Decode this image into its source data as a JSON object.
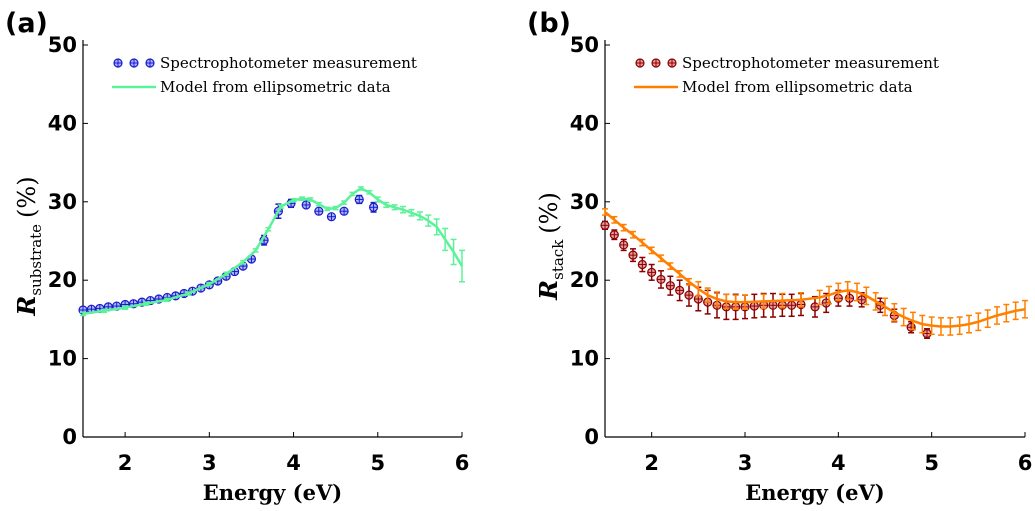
{
  "chart_data": [
    {
      "type": "errorbar",
      "panel_label": "(a)",
      "xlabel": "Energy (eV)",
      "ylabel": {
        "symbol": "R",
        "subscript": "substrate",
        "unit": "(%)"
      },
      "xlim": [
        1.5,
        6
      ],
      "xticks": [
        2,
        3,
        4,
        5,
        6
      ],
      "ylim": [
        0,
        50
      ],
      "yticks": [
        0,
        10,
        20,
        30,
        40,
        50
      ],
      "legend": "upper left",
      "series": [
        {
          "name": "Spectrophotometer measurement",
          "type": "markers",
          "color": "#1a1ac8",
          "marker_fill": "#a8b8ff",
          "x": [
            1.5,
            1.6,
            1.7,
            1.8,
            1.9,
            2.0,
            2.1,
            2.2,
            2.3,
            2.4,
            2.5,
            2.6,
            2.7,
            2.8,
            2.9,
            3.0,
            3.1,
            3.2,
            3.3,
            3.4,
            3.5,
            3.65,
            3.82,
            3.97,
            4.15,
            4.3,
            4.45,
            4.6,
            4.78,
            4.95
          ],
          "values": [
            16.2,
            16.3,
            16.4,
            16.6,
            16.7,
            16.9,
            17.0,
            17.2,
            17.4,
            17.6,
            17.8,
            18.0,
            18.3,
            18.6,
            19.0,
            19.4,
            19.9,
            20.5,
            21.1,
            21.8,
            22.7,
            25.1,
            28.8,
            29.8,
            29.6,
            28.8,
            28.1,
            28.8,
            30.3,
            29.3
          ],
          "errors": [
            0.3,
            0.3,
            0.3,
            0.3,
            0.3,
            0.3,
            0.3,
            0.3,
            0.3,
            0.3,
            0.3,
            0.3,
            0.3,
            0.3,
            0.3,
            0.3,
            0.3,
            0.3,
            0.3,
            0.3,
            0.3,
            0.6,
            0.9,
            0.5,
            0.3,
            0.3,
            0.3,
            0.3,
            0.5,
            0.6
          ]
        },
        {
          "name": "Model from ellipsometric data",
          "type": "line",
          "color": "#5cf29a",
          "x": [
            1.5,
            1.75,
            2,
            2.25,
            2.5,
            2.75,
            3,
            3.2,
            3.4,
            3.55,
            3.7,
            3.85,
            4.0,
            4.1,
            4.2,
            4.3,
            4.4,
            4.5,
            4.6,
            4.7,
            4.8,
            4.9,
            5.0,
            5.1,
            5.2,
            5.3,
            5.4,
            5.5,
            5.6,
            5.7,
            5.8,
            5.9,
            6.0
          ],
          "values": [
            15.7,
            16.1,
            16.5,
            17.0,
            17.5,
            18.3,
            19.5,
            20.8,
            22.3,
            23.8,
            26.5,
            29.4,
            30.2,
            30.4,
            30.3,
            29.7,
            29.1,
            29.2,
            29.9,
            31.0,
            31.7,
            31.2,
            30.3,
            29.6,
            29.3,
            29.0,
            28.6,
            28.2,
            27.6,
            26.8,
            25.2,
            23.6,
            21.8
          ],
          "errors": [
            0.2,
            0.2,
            0.2,
            0.2,
            0.2,
            0.2,
            0.2,
            0.2,
            0.2,
            0.2,
            0.2,
            0.2,
            0.2,
            0.2,
            0.2,
            0.2,
            0.2,
            0.2,
            0.2,
            0.2,
            0.2,
            0.2,
            0.3,
            0.3,
            0.3,
            0.4,
            0.4,
            0.5,
            0.7,
            1.0,
            1.4,
            1.6,
            2.0
          ]
        }
      ]
    },
    {
      "type": "errorbar",
      "panel_label": "(b)",
      "xlabel": "Energy (eV)",
      "ylabel": {
        "symbol": "R",
        "subscript": "stack",
        "unit": "(%)"
      },
      "xlim": [
        1.5,
        6
      ],
      "xticks": [
        2,
        3,
        4,
        5,
        6
      ],
      "ylim": [
        0,
        50
      ],
      "yticks": [
        0,
        10,
        20,
        30,
        40,
        50
      ],
      "legend": "upper left",
      "series": [
        {
          "name": "Spectrophotometer measurement",
          "type": "markers",
          "color": "#8b0000",
          "marker_fill": "#e6a0a0",
          "x": [
            1.5,
            1.6,
            1.7,
            1.8,
            1.9,
            2.0,
            2.1,
            2.2,
            2.3,
            2.4,
            2.5,
            2.6,
            2.7,
            2.8,
            2.9,
            3.0,
            3.1,
            3.2,
            3.3,
            3.4,
            3.5,
            3.6,
            3.75,
            3.87,
            4.0,
            4.12,
            4.25,
            4.45,
            4.6,
            4.78,
            4.95
          ],
          "values": [
            27.0,
            25.8,
            24.5,
            23.2,
            22.0,
            21.0,
            20.1,
            19.3,
            18.7,
            18.1,
            17.6,
            17.2,
            16.8,
            16.6,
            16.6,
            16.6,
            16.7,
            16.8,
            16.8,
            16.8,
            16.8,
            16.9,
            16.6,
            17.1,
            17.7,
            17.7,
            17.5,
            16.8,
            15.5,
            14.0,
            13.2
          ],
          "errors": [
            0.5,
            0.6,
            0.7,
            0.8,
            0.9,
            1.0,
            1.1,
            1.2,
            1.3,
            1.4,
            1.5,
            1.5,
            1.6,
            1.6,
            1.6,
            1.5,
            1.5,
            1.5,
            1.5,
            1.4,
            1.4,
            1.4,
            1.3,
            1.2,
            1.0,
            1.0,
            0.9,
            0.9,
            0.8,
            0.7,
            0.6
          ]
        },
        {
          "name": "Model from ellipsometric data",
          "type": "line",
          "color": "#ff8000",
          "x": [
            1.5,
            1.6,
            1.7,
            1.8,
            1.9,
            2.0,
            2.1,
            2.2,
            2.3,
            2.4,
            2.5,
            2.6,
            2.7,
            2.8,
            2.9,
            3.0,
            3.2,
            3.4,
            3.6,
            3.8,
            3.9,
            4.0,
            4.1,
            4.2,
            4.3,
            4.4,
            4.5,
            4.6,
            4.7,
            4.8,
            4.9,
            5.0,
            5.1,
            5.2,
            5.3,
            5.4,
            5.5,
            5.6,
            5.7,
            5.8,
            5.9,
            6.0
          ],
          "values": [
            28.7,
            27.7,
            26.7,
            25.8,
            24.8,
            23.8,
            22.8,
            21.8,
            20.8,
            19.8,
            18.9,
            18.1,
            17.6,
            17.3,
            17.2,
            17.2,
            17.3,
            17.4,
            17.5,
            17.8,
            18.1,
            18.5,
            18.7,
            18.5,
            18.0,
            17.3,
            16.6,
            15.9,
            15.3,
            14.8,
            14.4,
            14.2,
            14.1,
            14.1,
            14.2,
            14.4,
            14.7,
            15.1,
            15.5,
            15.8,
            16.1,
            16.3
          ],
          "errors": [
            0.4,
            0.4,
            0.4,
            0.4,
            0.4,
            0.4,
            0.4,
            0.4,
            0.4,
            0.4,
            0.9,
            0.9,
            0.9,
            0.9,
            0.9,
            0.9,
            0.9,
            0.9,
            0.9,
            0.9,
            1.1,
            1.1,
            1.1,
            1.1,
            1.1,
            1.1,
            1.1,
            1.1,
            1.1,
            1.1,
            1.1,
            1.1,
            1.1,
            1.1,
            1.1,
            1.1,
            1.1,
            1.1,
            1.1,
            1.1,
            1.1,
            1.1
          ]
        }
      ]
    }
  ]
}
